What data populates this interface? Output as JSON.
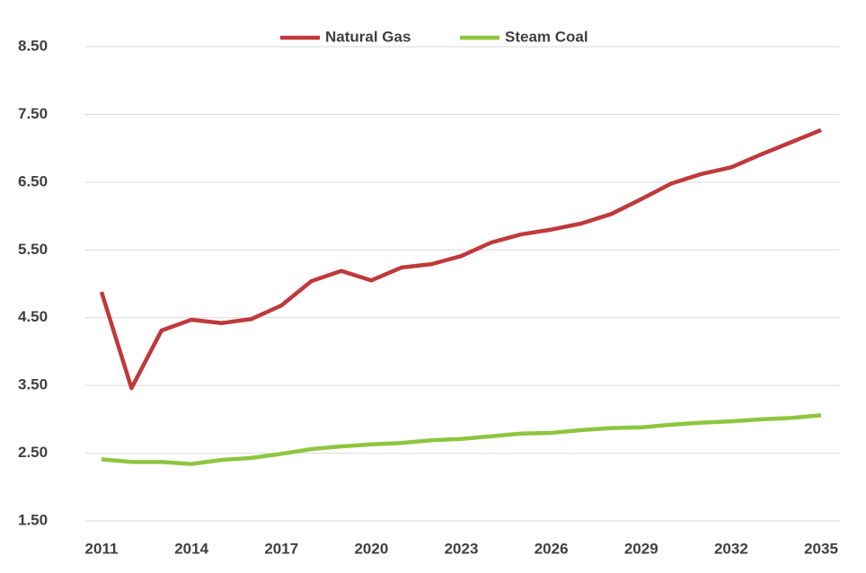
{
  "chart_data": {
    "type": "line",
    "x": [
      2011,
      2012,
      2013,
      2014,
      2015,
      2016,
      2017,
      2018,
      2019,
      2020,
      2021,
      2022,
      2023,
      2024,
      2025,
      2026,
      2027,
      2028,
      2029,
      2030,
      2031,
      2032,
      2033,
      2034,
      2035
    ],
    "series": [
      {
        "name": "Natural Gas",
        "color": "#c0393b",
        "values": [
          4.88,
          3.46,
          4.31,
          4.47,
          4.42,
          4.48,
          4.68,
          5.04,
          5.19,
          5.05,
          5.24,
          5.29,
          5.41,
          5.61,
          5.73,
          5.8,
          5.89,
          6.03,
          6.25,
          6.48,
          6.62,
          6.72,
          6.91,
          7.09,
          7.27
        ]
      },
      {
        "name": "Steam Coal",
        "color": "#8dc63f",
        "values": [
          2.41,
          2.37,
          2.37,
          2.34,
          2.4,
          2.43,
          2.49,
          2.56,
          2.6,
          2.63,
          2.65,
          2.69,
          2.71,
          2.75,
          2.79,
          2.8,
          2.84,
          2.87,
          2.88,
          2.92,
          2.95,
          2.97,
          3.0,
          3.02,
          3.06
        ]
      }
    ],
    "xlim": [
      2011,
      2035
    ],
    "xticks": [
      2011,
      2014,
      2017,
      2020,
      2023,
      2026,
      2029,
      2032,
      2035
    ],
    "ylim": [
      1.5,
      8.5
    ],
    "yticks": [
      {
        "value": 1.5,
        "label": "1.50"
      },
      {
        "value": 2.5,
        "label": "2.50"
      },
      {
        "value": 3.5,
        "label": "3.50"
      },
      {
        "value": 4.5,
        "label": "4.50"
      },
      {
        "value": 5.5,
        "label": "5.50"
      },
      {
        "value": 6.5,
        "label": "6.50"
      },
      {
        "value": 7.5,
        "label": "7.50"
      },
      {
        "value": 8.5,
        "label": "8.50"
      }
    ],
    "grid": true,
    "legend": "top"
  }
}
